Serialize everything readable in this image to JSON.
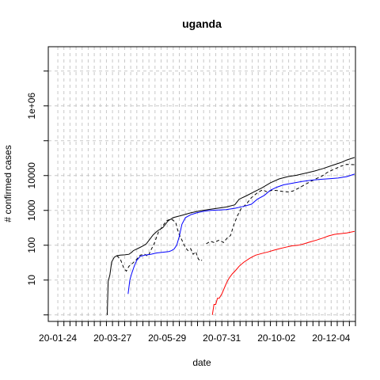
{
  "chart_data": {
    "type": "line",
    "title": "uganda",
    "xlabel": "date",
    "ylabel": "# confirmed cases",
    "x_tick_labels": [
      "20-01-24",
      "20-03-27",
      "20-05-29",
      "20-07-31",
      "20-10-02",
      "20-12-04"
    ],
    "x_tick_dates": [
      "2020-01-24",
      "2020-03-27",
      "2020-05-29",
      "2020-07-31",
      "2020-10-02",
      "2020-12-04"
    ],
    "x_range": [
      "2020-01-13",
      "2021-01-01"
    ],
    "y_scale": "log",
    "y_tick_labels": [
      "10",
      "100",
      "1000",
      "10000",
      "1e+06"
    ],
    "y_tick_values": [
      10,
      100,
      1000,
      10000,
      1000000
    ],
    "y_range": [
      0.65,
      50000000
    ],
    "grid": true,
    "series": [
      {
        "color": "#000000",
        "dash": "solid",
        "points": [
          [
            "2020-03-21",
            1
          ],
          [
            "2020-03-22",
            9
          ],
          [
            "2020-03-24",
            14
          ],
          [
            "2020-03-26",
            33
          ],
          [
            "2020-03-29",
            45
          ],
          [
            "2020-04-01",
            50
          ],
          [
            "2020-04-05",
            52
          ],
          [
            "2020-04-10",
            53
          ],
          [
            "2020-04-15",
            55
          ],
          [
            "2020-04-18",
            62
          ],
          [
            "2020-04-20",
            70
          ],
          [
            "2020-04-25",
            80
          ],
          [
            "2020-05-01",
            95
          ],
          [
            "2020-05-05",
            110
          ],
          [
            "2020-05-10",
            160
          ],
          [
            "2020-05-13",
            200
          ],
          [
            "2020-05-18",
            260
          ],
          [
            "2020-05-24",
            320
          ],
          [
            "2020-05-30",
            500
          ],
          [
            "2020-06-05",
            620
          ],
          [
            "2020-06-15",
            720
          ],
          [
            "2020-06-25",
            850
          ],
          [
            "2020-07-05",
            960
          ],
          [
            "2020-07-15",
            1050
          ],
          [
            "2020-07-28",
            1170
          ],
          [
            "2020-08-05",
            1250
          ],
          [
            "2020-08-15",
            1450
          ],
          [
            "2020-08-20",
            2100
          ],
          [
            "2020-08-28",
            2600
          ],
          [
            "2020-09-05",
            3300
          ],
          [
            "2020-09-15",
            4400
          ],
          [
            "2020-09-25",
            6200
          ],
          [
            "2020-10-05",
            8000
          ],
          [
            "2020-10-15",
            9300
          ],
          [
            "2020-10-25",
            10200
          ],
          [
            "2020-11-05",
            11800
          ],
          [
            "2020-11-15",
            13500
          ],
          [
            "2020-11-25",
            16000
          ],
          [
            "2020-12-05",
            19500
          ],
          [
            "2020-12-15",
            23500
          ],
          [
            "2020-12-22",
            28000
          ],
          [
            "2020-12-31",
            33000
          ]
        ]
      },
      {
        "color": "#000000",
        "dash": "dashed",
        "points": [
          [
            "2020-04-01",
            50
          ],
          [
            "2020-04-05",
            40
          ],
          [
            "2020-04-09",
            22
          ],
          [
            "2020-04-12",
            18
          ],
          [
            "2020-04-15",
            25
          ],
          [
            "2020-04-19",
            30
          ],
          [
            "2020-04-24",
            40
          ],
          [
            "2020-04-28",
            52
          ],
          [
            "2020-05-03",
            55
          ],
          [
            "2020-05-07",
            48
          ],
          [
            "2020-05-10",
            70
          ],
          [
            "2020-05-14",
            110
          ],
          [
            "2020-05-19",
            240
          ],
          [
            "2020-05-23",
            330
          ],
          [
            "2020-05-28",
            500
          ],
          [
            "2020-06-02",
            560
          ],
          [
            "2020-06-05",
            520
          ],
          [
            "2020-06-08",
            440
          ],
          [
            "2020-06-10",
            280
          ],
          [
            "2020-06-12",
            200
          ],
          [
            "2020-06-15",
            140
          ],
          [
            "2020-06-19",
            85
          ],
          [
            "2020-06-22",
            70
          ],
          [
            "2020-06-25",
            80
          ],
          [
            "2020-06-28",
            55
          ],
          [
            "2020-07-01",
            65
          ],
          [
            "2020-07-04",
            40
          ],
          [
            "2020-07-07",
            35
          ],
          [
            "2020-07-08",
            38
          ],
          [
            null,
            null
          ],
          [
            "2020-07-13",
            110
          ],
          [
            "2020-07-18",
            130
          ],
          [
            "2020-07-22",
            120
          ],
          [
            "2020-07-28",
            140
          ],
          [
            "2020-08-02",
            120
          ],
          [
            "2020-08-06",
            160
          ],
          [
            "2020-08-10",
            190
          ],
          [
            "2020-08-14",
            400
          ],
          [
            "2020-08-18",
            700
          ],
          [
            "2020-08-22",
            1100
          ],
          [
            "2020-08-28",
            1500
          ],
          [
            "2020-09-03",
            2300
          ],
          [
            "2020-09-10",
            3200
          ],
          [
            "2020-09-16",
            3900
          ],
          [
            "2020-09-21",
            3400
          ],
          [
            "2020-09-27",
            3800
          ],
          [
            "2020-10-03",
            3700
          ],
          [
            "2020-10-09",
            3500
          ],
          [
            "2020-10-15",
            3400
          ],
          [
            "2020-10-21",
            3600
          ],
          [
            "2020-10-27",
            4300
          ],
          [
            "2020-11-02",
            5200
          ],
          [
            "2020-11-09",
            6500
          ],
          [
            "2020-11-16",
            8000
          ],
          [
            "2020-11-23",
            9500
          ],
          [
            "2020-11-30",
            12500
          ],
          [
            "2020-12-07",
            15000
          ],
          [
            "2020-12-15",
            18500
          ],
          [
            "2020-12-22",
            21000
          ],
          [
            "2020-12-31",
            20500
          ]
        ]
      },
      {
        "color": "#0000ff",
        "dash": "solid",
        "points": [
          [
            "2020-04-14",
            4
          ],
          [
            "2020-04-16",
            10
          ],
          [
            "2020-04-18",
            15
          ],
          [
            "2020-04-21",
            25
          ],
          [
            "2020-04-24",
            37
          ],
          [
            "2020-04-28",
            48
          ],
          [
            "2020-05-03",
            52
          ],
          [
            "2020-05-10",
            55
          ],
          [
            "2020-05-17",
            60
          ],
          [
            "2020-05-24",
            63
          ],
          [
            "2020-05-31",
            66
          ],
          [
            "2020-06-03",
            70
          ],
          [
            "2020-06-06",
            78
          ],
          [
            "2020-06-09",
            100
          ],
          [
            "2020-06-12",
            180
          ],
          [
            "2020-06-15",
            400
          ],
          [
            "2020-06-19",
            620
          ],
          [
            "2020-06-25",
            750
          ],
          [
            "2020-07-02",
            850
          ],
          [
            "2020-07-10",
            940
          ],
          [
            "2020-07-18",
            1000
          ],
          [
            "2020-07-28",
            1030
          ],
          [
            "2020-08-05",
            1050
          ],
          [
            "2020-08-15",
            1150
          ],
          [
            "2020-08-25",
            1300
          ],
          [
            "2020-09-03",
            1500
          ],
          [
            "2020-09-10",
            2100
          ],
          [
            "2020-09-18",
            2700
          ],
          [
            "2020-09-25",
            3800
          ],
          [
            "2020-10-02",
            4600
          ],
          [
            "2020-10-10",
            5400
          ],
          [
            "2020-10-20",
            6000
          ],
          [
            "2020-11-01",
            6800
          ],
          [
            "2020-11-12",
            7400
          ],
          [
            "2020-11-22",
            7800
          ],
          [
            "2020-12-02",
            8100
          ],
          [
            "2020-12-12",
            8500
          ],
          [
            "2020-12-22",
            9300
          ],
          [
            "2020-12-31",
            11000
          ]
        ]
      },
      {
        "color": "#ff0000",
        "dash": "solid",
        "points": [
          [
            "2020-07-20",
            1
          ],
          [
            "2020-07-22",
            2
          ],
          [
            "2020-07-24",
            2
          ],
          [
            "2020-07-26",
            3
          ],
          [
            "2020-07-28",
            3
          ],
          [
            "2020-07-31",
            4
          ],
          [
            "2020-08-03",
            6
          ],
          [
            "2020-08-06",
            9
          ],
          [
            "2020-08-09",
            12
          ],
          [
            "2020-08-12",
            15
          ],
          [
            "2020-08-16",
            19
          ],
          [
            "2020-08-20",
            25
          ],
          [
            "2020-08-25",
            32
          ],
          [
            "2020-09-01",
            42
          ],
          [
            "2020-09-08",
            52
          ],
          [
            "2020-09-15",
            58
          ],
          [
            "2020-09-22",
            64
          ],
          [
            "2020-09-29",
            72
          ],
          [
            "2020-10-06",
            80
          ],
          [
            "2020-10-13",
            88
          ],
          [
            "2020-10-20",
            96
          ],
          [
            "2020-10-27",
            100
          ],
          [
            "2020-11-03",
            110
          ],
          [
            "2020-11-10",
            125
          ],
          [
            "2020-11-17",
            140
          ],
          [
            "2020-11-24",
            160
          ],
          [
            "2020-12-01",
            185
          ],
          [
            "2020-12-08",
            205
          ],
          [
            "2020-12-15",
            215
          ],
          [
            "2020-12-22",
            225
          ],
          [
            "2020-12-31",
            250
          ]
        ]
      }
    ]
  }
}
